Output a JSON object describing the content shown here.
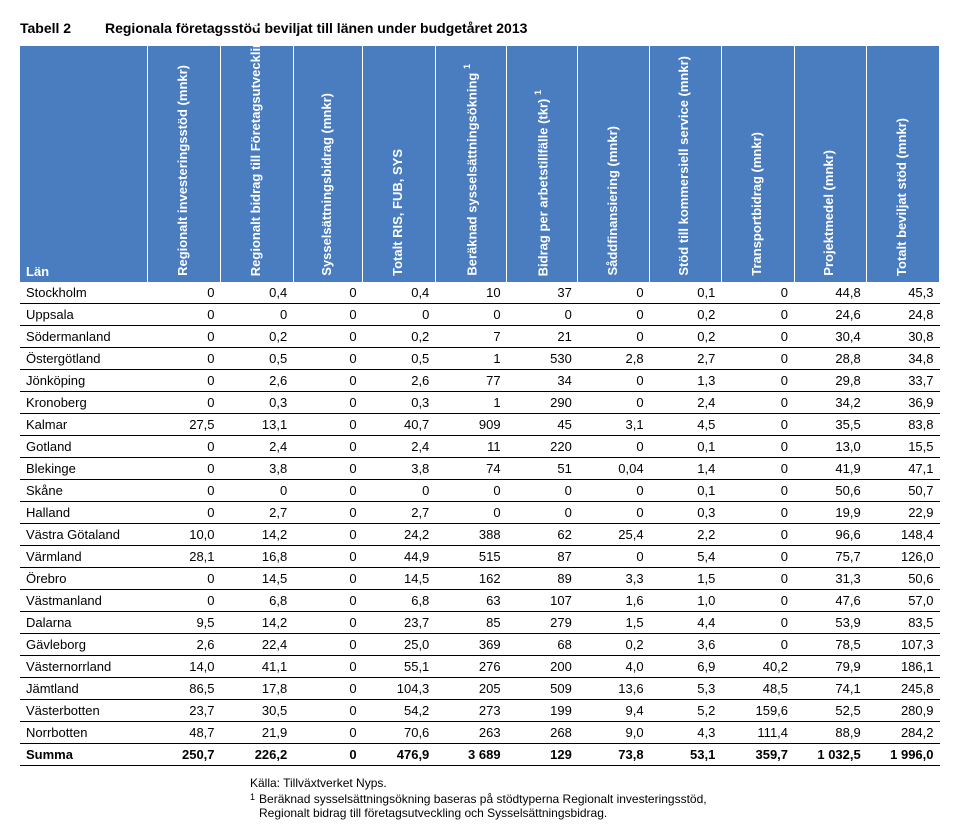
{
  "title_label": "Tabell 2",
  "title_text": "Regionala företagsstöd beviljat till länen under budgetåret 2013",
  "columns": [
    "Län",
    "Regionalt investeringsstöd (mnkr)",
    "Regionalt bidrag till Företagsutveckling (mnkr)",
    "Sysselsättningsbidrag (mnkr)",
    "Totalt RIS, FUB, SYS",
    "Beräknad sysselsättningsökning",
    "Bidrag per arbetstillfälle (tkr)",
    "Såddfinansiering (mnkr)",
    "Stöd till kommersiell service (mnkr)",
    "Transportbidrag (mnkr)",
    "Projektmedel (mnkr)",
    "Totalt beviljat stöd (mnkr)"
  ],
  "col_sup": [
    "",
    "",
    "",
    "",
    "",
    "1",
    "1",
    "",
    "",
    "",
    "",
    ""
  ],
  "rows": [
    [
      "Stockholm",
      "0",
      "0,4",
      "0",
      "0,4",
      "10",
      "37",
      "0",
      "0,1",
      "0",
      "44,8",
      "45,3"
    ],
    [
      "Uppsala",
      "0",
      "0",
      "0",
      "0",
      "0",
      "0",
      "0",
      "0,2",
      "0",
      "24,6",
      "24,8"
    ],
    [
      "Södermanland",
      "0",
      "0,2",
      "0",
      "0,2",
      "7",
      "21",
      "0",
      "0,2",
      "0",
      "30,4",
      "30,8"
    ],
    [
      "Östergötland",
      "0",
      "0,5",
      "0",
      "0,5",
      "1",
      "530",
      "2,8",
      "2,7",
      "0",
      "28,8",
      "34,8"
    ],
    [
      "Jönköping",
      "0",
      "2,6",
      "0",
      "2,6",
      "77",
      "34",
      "0",
      "1,3",
      "0",
      "29,8",
      "33,7"
    ],
    [
      "Kronoberg",
      "0",
      "0,3",
      "0",
      "0,3",
      "1",
      "290",
      "0",
      "2,4",
      "0",
      "34,2",
      "36,9"
    ],
    [
      "Kalmar",
      "27,5",
      "13,1",
      "0",
      "40,7",
      "909",
      "45",
      "3,1",
      "4,5",
      "0",
      "35,5",
      "83,8"
    ],
    [
      "Gotland",
      "0",
      "2,4",
      "0",
      "2,4",
      "11",
      "220",
      "0",
      "0,1",
      "0",
      "13,0",
      "15,5"
    ],
    [
      "Blekinge",
      "0",
      "3,8",
      "0",
      "3,8",
      "74",
      "51",
      "0,04",
      "1,4",
      "0",
      "41,9",
      "47,1"
    ],
    [
      "Skåne",
      "0",
      "0",
      "0",
      "0",
      "0",
      "0",
      "0",
      "0,1",
      "0",
      "50,6",
      "50,7"
    ],
    [
      "Halland",
      "0",
      "2,7",
      "0",
      "2,7",
      "0",
      "0",
      "0",
      "0,3",
      "0",
      "19,9",
      "22,9"
    ],
    [
      "Västra Götaland",
      "10,0",
      "14,2",
      "0",
      "24,2",
      "388",
      "62",
      "25,4",
      "2,2",
      "0",
      "96,6",
      "148,4"
    ],
    [
      "Värmland",
      "28,1",
      "16,8",
      "0",
      "44,9",
      "515",
      "87",
      "0",
      "5,4",
      "0",
      "75,7",
      "126,0"
    ],
    [
      "Örebro",
      "0",
      "14,5",
      "0",
      "14,5",
      "162",
      "89",
      "3,3",
      "1,5",
      "0",
      "31,3",
      "50,6"
    ],
    [
      "Västmanland",
      "0",
      "6,8",
      "0",
      "6,8",
      "63",
      "107",
      "1,6",
      "1,0",
      "0",
      "47,6",
      "57,0"
    ],
    [
      "Dalarna",
      "9,5",
      "14,2",
      "0",
      "23,7",
      "85",
      "279",
      "1,5",
      "4,4",
      "0",
      "53,9",
      "83,5"
    ],
    [
      "Gävleborg",
      "2,6",
      "22,4",
      "0",
      "25,0",
      "369",
      "68",
      "0,2",
      "3,6",
      "0",
      "78,5",
      "107,3"
    ],
    [
      "Västernorrland",
      "14,0",
      "41,1",
      "0",
      "55,1",
      "276",
      "200",
      "4,0",
      "6,9",
      "40,2",
      "79,9",
      "186,1"
    ],
    [
      "Jämtland",
      "86,5",
      "17,8",
      "0",
      "104,3",
      "205",
      "509",
      "13,6",
      "5,3",
      "48,5",
      "74,1",
      "245,8"
    ],
    [
      "Västerbotten",
      "23,7",
      "30,5",
      "0",
      "54,2",
      "273",
      "199",
      "9,4",
      "5,2",
      "159,6",
      "52,5",
      "280,9"
    ],
    [
      "Norrbotten",
      "48,7",
      "21,9",
      "0",
      "70,6",
      "263",
      "268",
      "9,0",
      "4,3",
      "111,4",
      "88,9",
      "284,2"
    ]
  ],
  "sum_row": [
    "Summa",
    "250,7",
    "226,2",
    "0",
    "476,9",
    "3 689",
    "129",
    "73,8",
    "53,1",
    "359,7",
    "1 032,5",
    "1 996,0"
  ],
  "source": "Källa: Tillväxtverket Nyps.",
  "footnote_num": "1",
  "footnote_text_l1": "Beräknad sysselsättningsökning baseras på stödtyperna Regionalt investeringsstöd,",
  "footnote_text_l2": "Regionalt bidrag till företagsutveckling och Sysselsättningsbidrag.",
  "theme": {
    "header_bg": "#4a7cc0",
    "header_fg": "#ffffff",
    "row_border": "#000000",
    "body_bg": "#ffffff",
    "text_color": "#000000"
  }
}
